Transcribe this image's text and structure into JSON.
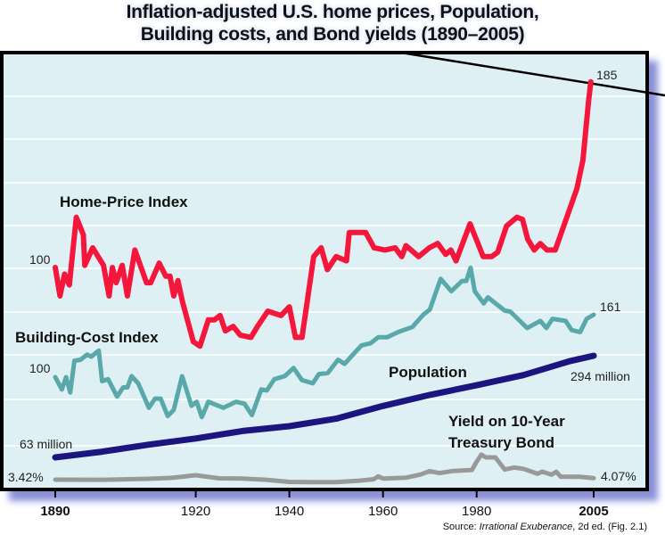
{
  "title_line1": "Inflation-adjusted U.S. home prices, Population,",
  "title_line2": "Building costs, and Bond yields (1890–2005)",
  "source_prefix": "Source: ",
  "source_italic": "Irrational Exuberance",
  "source_suffix": ", 2d ed. (Fig. 2.1)",
  "chart_data": {
    "type": "line",
    "title": "Inflation-adjusted U.S. home prices, Population, Building costs, and Bond yields (1890–2005)",
    "xlim": [
      1890,
      2005
    ],
    "x_ticks": [
      "1890",
      "1920",
      "1940",
      "1960",
      "1980",
      "2005"
    ],
    "grid": true,
    "background": "#dff0f5",
    "series": [
      {
        "name": "Home-Price Index",
        "color": "#f5163b",
        "start_label": "100",
        "end_label": "185",
        "points": [
          [
            1890,
            100
          ],
          [
            1891,
            87
          ],
          [
            1892,
            97
          ],
          [
            1893,
            92
          ],
          [
            1894.5,
            123
          ],
          [
            1896,
            115
          ],
          [
            1896.3,
            101
          ],
          [
            1898,
            109
          ],
          [
            1900.3,
            101
          ],
          [
            1901.5,
            87
          ],
          [
            1902.2,
            100
          ],
          [
            1903,
            93
          ],
          [
            1904.3,
            101
          ],
          [
            1905.4,
            87
          ],
          [
            1907,
            108
          ],
          [
            1909.5,
            93
          ],
          [
            1910.4,
            93
          ],
          [
            1912.2,
            102
          ],
          [
            1913.6,
            96
          ],
          [
            1914.5,
            96
          ],
          [
            1915.3,
            87
          ],
          [
            1916.2,
            94
          ],
          [
            1917.2,
            84
          ],
          [
            1919.5,
            66
          ],
          [
            1920.9,
            64
          ],
          [
            1922.7,
            76
          ],
          [
            1924,
            76
          ],
          [
            1925.2,
            78
          ],
          [
            1926.3,
            71
          ],
          [
            1928,
            73
          ],
          [
            1929.5,
            69
          ],
          [
            1931.8,
            68
          ],
          [
            1933.2,
            73
          ],
          [
            1935.4,
            80
          ],
          [
            1938.2,
            78
          ],
          [
            1940,
            82
          ],
          [
            1941.3,
            68
          ],
          [
            1942.7,
            68
          ],
          [
            1945.2,
            105
          ],
          [
            1946.8,
            109
          ],
          [
            1948.1,
            99
          ],
          [
            1950,
            105
          ],
          [
            1952.2,
            103
          ],
          [
            1952.8,
            116
          ],
          [
            1956.3,
            116
          ],
          [
            1958.1,
            109
          ],
          [
            1960.4,
            108
          ],
          [
            1962.6,
            109
          ],
          [
            1964,
            105
          ],
          [
            1964.9,
            110
          ],
          [
            1967.6,
            105
          ],
          [
            1969.9,
            109
          ],
          [
            1971.7,
            111
          ],
          [
            1973.4,
            106
          ],
          [
            1974.5,
            108
          ],
          [
            1975.6,
            103
          ],
          [
            1978.6,
            120
          ],
          [
            1981.4,
            105
          ],
          [
            1983.2,
            105
          ],
          [
            1984.5,
            107
          ],
          [
            1986.4,
            119
          ],
          [
            1988.6,
            123
          ],
          [
            1989.8,
            122
          ],
          [
            1990.9,
            113
          ],
          [
            1992.3,
            108
          ],
          [
            1993.6,
            111
          ],
          [
            1995,
            108
          ],
          [
            1996.8,
            108
          ],
          [
            1999.1,
            122
          ],
          [
            2001.4,
            136
          ],
          [
            2002.7,
            149
          ],
          [
            2003.9,
            176
          ],
          [
            2004.4,
            185
          ]
        ]
      },
      {
        "name": "Building-Cost Index",
        "color": "#5aa9aa",
        "start_label": "100",
        "end_label": "161",
        "points": [
          [
            1890,
            100
          ],
          [
            1891.4,
            88
          ],
          [
            1892.3,
            100
          ],
          [
            1893.2,
            85
          ],
          [
            1894.1,
            116
          ],
          [
            1895.4,
            117
          ],
          [
            1896.8,
            122
          ],
          [
            1897.7,
            120
          ],
          [
            1899.3,
            126
          ],
          [
            1900,
            96
          ],
          [
            1901.3,
            98
          ],
          [
            1903.2,
            81
          ],
          [
            1904.5,
            90
          ],
          [
            1905.4,
            90
          ],
          [
            1906.3,
            101
          ],
          [
            1907.7,
            94
          ],
          [
            1910,
            70
          ],
          [
            1911.3,
            79
          ],
          [
            1912.5,
            79
          ],
          [
            1914,
            62
          ],
          [
            1915.3,
            68
          ],
          [
            1917.1,
            101
          ],
          [
            1919.1,
            72
          ],
          [
            1920.2,
            76
          ],
          [
            1921.3,
            61
          ],
          [
            1922.7,
            76
          ],
          [
            1925.9,
            70
          ],
          [
            1928.6,
            76
          ],
          [
            1930.4,
            74
          ],
          [
            1932,
            63
          ],
          [
            1934,
            88
          ],
          [
            1935.2,
            87
          ],
          [
            1936.8,
            98
          ],
          [
            1939,
            101
          ],
          [
            1940.9,
            109
          ],
          [
            1942.7,
            97
          ],
          [
            1945,
            94
          ],
          [
            1946.3,
            103
          ],
          [
            1948.2,
            104
          ],
          [
            1950.4,
            117
          ],
          [
            1951.8,
            113
          ],
          [
            1953.6,
            122
          ],
          [
            1955.4,
            131
          ],
          [
            1957.3,
            133
          ],
          [
            1959,
            139
          ],
          [
            1960.9,
            139
          ],
          [
            1963.2,
            144
          ],
          [
            1966.3,
            149
          ],
          [
            1968.6,
            161
          ],
          [
            1970,
            166
          ],
          [
            1972.3,
            196
          ],
          [
            1974.6,
            184
          ],
          [
            1976.9,
            194
          ],
          [
            1977.8,
            194
          ],
          [
            1978.7,
            207
          ],
          [
            1979.6,
            184
          ],
          [
            1981.5,
            172
          ],
          [
            1982.4,
            178
          ],
          [
            1986,
            165
          ],
          [
            1987.2,
            164
          ],
          [
            1990.8,
            148
          ],
          [
            1993.6,
            155
          ],
          [
            1994.9,
            148
          ],
          [
            1996.2,
            157
          ],
          [
            1999,
            155
          ],
          [
            2000.3,
            146
          ],
          [
            2002.1,
            144
          ],
          [
            2003.5,
            157
          ],
          [
            2005,
            161
          ]
        ]
      },
      {
        "name": "Population",
        "unit": "million",
        "color": "#1c1580",
        "start_label": "63 million",
        "end_label": "294 million",
        "points": [
          [
            1890,
            63
          ],
          [
            1900,
            76
          ],
          [
            1910,
            92
          ],
          [
            1920,
            106
          ],
          [
            1930,
            123
          ],
          [
            1940,
            134
          ],
          [
            1950,
            151
          ],
          [
            1960,
            180
          ],
          [
            1970,
            205
          ],
          [
            1980,
            227
          ],
          [
            1990,
            250
          ],
          [
            2000,
            282
          ],
          [
            2005,
            294
          ]
        ]
      },
      {
        "name": "Yield on 10-Year Treasury Bond",
        "name_line1": "Yield on 10-Year",
        "name_line2": "Treasury Bond",
        "unit": "%",
        "color": "#999999",
        "start_label": "3.42%",
        "end_label": "4.07%",
        "points": [
          [
            1890,
            3.42
          ],
          [
            1900,
            3.4
          ],
          [
            1910,
            3.8
          ],
          [
            1915,
            4.2
          ],
          [
            1920,
            5.3
          ],
          [
            1925,
            4.0
          ],
          [
            1930,
            3.9
          ],
          [
            1935,
            3.4
          ],
          [
            1940,
            2.5
          ],
          [
            1945,
            2.4
          ],
          [
            1950,
            2.4
          ],
          [
            1955,
            3.0
          ],
          [
            1958,
            3.6
          ],
          [
            1959,
            4.8
          ],
          [
            1960,
            3.9
          ],
          [
            1965,
            4.3
          ],
          [
            1968,
            5.6
          ],
          [
            1970,
            7.0
          ],
          [
            1972,
            6.2
          ],
          [
            1975,
            7.1
          ],
          [
            1979,
            7.5
          ],
          [
            1980,
            11.0
          ],
          [
            1981,
            13.9
          ],
          [
            1982,
            12.8
          ],
          [
            1984,
            12.8
          ],
          [
            1986,
            7.7
          ],
          [
            1988,
            8.5
          ],
          [
            1990,
            8.0
          ],
          [
            1993,
            5.9
          ],
          [
            1994,
            6.8
          ],
          [
            1996,
            5.5
          ],
          [
            1997,
            6.7
          ],
          [
            1998,
            4.6
          ],
          [
            2000,
            4.7
          ],
          [
            2002,
            4.6
          ],
          [
            2005,
            4.07
          ]
        ]
      }
    ]
  }
}
